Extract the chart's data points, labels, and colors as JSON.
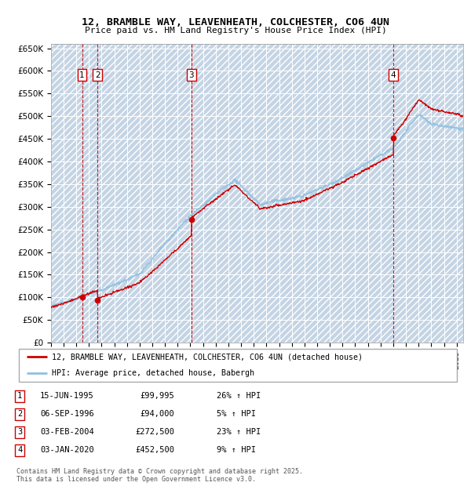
{
  "title1": "12, BRAMBLE WAY, LEAVENHEATH, COLCHESTER, CO6 4UN",
  "title2": "Price paid vs. HM Land Registry's House Price Index (HPI)",
  "ylim": [
    0,
    660000
  ],
  "yticks": [
    0,
    50000,
    100000,
    150000,
    200000,
    250000,
    300000,
    350000,
    400000,
    450000,
    500000,
    550000,
    600000,
    650000
  ],
  "ytick_labels": [
    "£0",
    "£50K",
    "£100K",
    "£150K",
    "£200K",
    "£250K",
    "£300K",
    "£350K",
    "£400K",
    "£450K",
    "£500K",
    "£550K",
    "£600K",
    "£650K"
  ],
  "bg_color": "#d8e8f4",
  "hatch_color": "#c4d4e4",
  "grid_color": "#ffffff",
  "sale_color": "#cc0000",
  "hpi_color": "#90c0e0",
  "xmin": 1993.0,
  "xmax": 2025.5,
  "purchases": [
    {
      "num": 1,
      "date_x": 1995.46,
      "price": 99995,
      "label": "1",
      "date_str": "15-JUN-1995",
      "price_str": "£99,995",
      "pct": "26% ↑ HPI"
    },
    {
      "num": 2,
      "date_x": 1996.68,
      "price": 94000,
      "label": "2",
      "date_str": "06-SEP-1996",
      "price_str": "£94,000",
      "pct": "5% ↑ HPI"
    },
    {
      "num": 3,
      "date_x": 2004.09,
      "price": 272500,
      "label": "3",
      "date_str": "03-FEB-2004",
      "price_str": "£272,500",
      "pct": "23% ↑ HPI"
    },
    {
      "num": 4,
      "date_x": 2020.01,
      "price": 452500,
      "label": "4",
      "date_str": "03-JAN-2020",
      "price_str": "£452,500",
      "pct": "9% ↑ HPI"
    }
  ],
  "legend_label1": "12, BRAMBLE WAY, LEAVENHEATH, COLCHESTER, CO6 4UN (detached house)",
  "legend_label2": "HPI: Average price, detached house, Babergh",
  "footer1": "Contains HM Land Registry data © Crown copyright and database right 2025.",
  "footer2": "This data is licensed under the Open Government Licence v3.0."
}
